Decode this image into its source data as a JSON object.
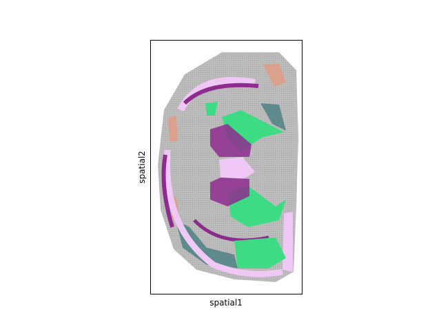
{
  "chart_data": {
    "type": "scatter",
    "xlabel": "spatial1",
    "ylabel": "spatial2"
  }
}
